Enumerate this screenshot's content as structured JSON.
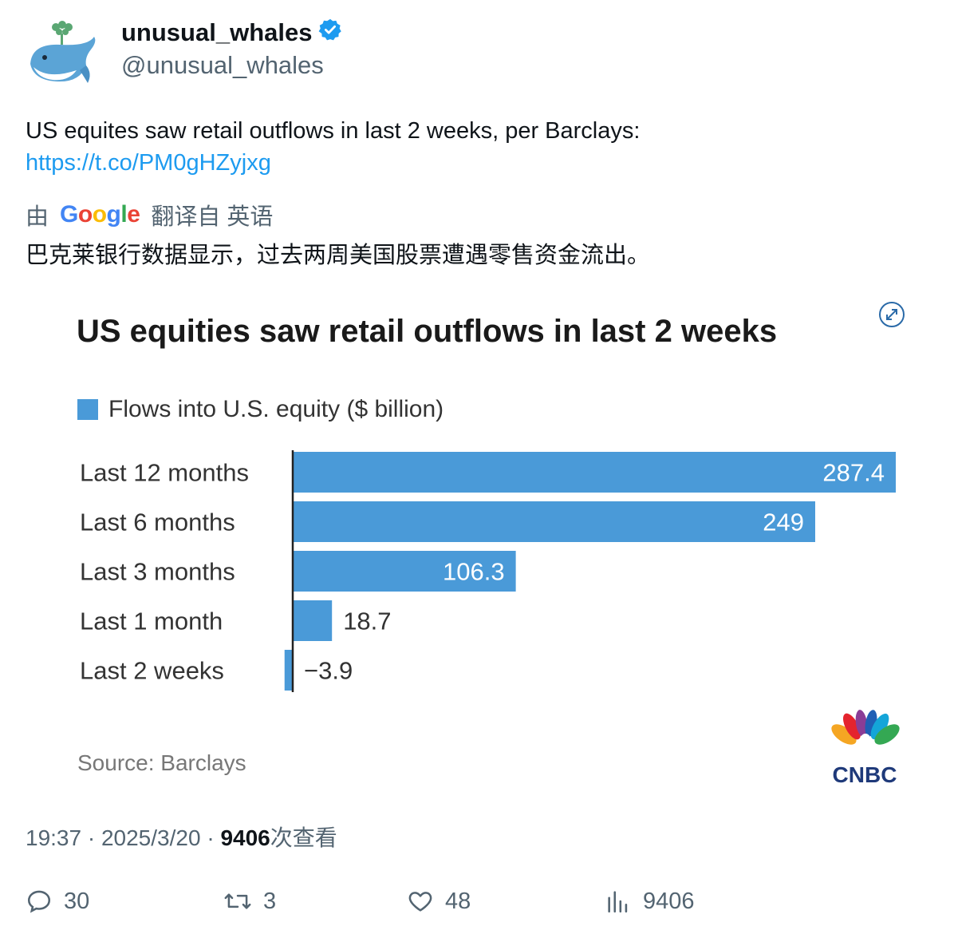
{
  "account": {
    "display_name": "unusual_whales",
    "handle": "@unusual_whales",
    "verified_color": "#1d9bf0"
  },
  "tweet": {
    "text": "US equites saw retail outflows in last 2 weeks, per Barclays:",
    "link": "https://t.co/PM0gHZyjxg",
    "translate_prefix": "由",
    "translate_brand": "Google",
    "translate_suffix": "翻译自 英语",
    "translated_text": "巴克莱银行数据显示，过去两周美国股票遭遇零售资金流出。"
  },
  "chart_data": {
    "type": "bar",
    "orientation": "horizontal",
    "title": "US equities saw retail outflows in last 2 weeks",
    "legend": "Flows into U.S. equity ($ billion)",
    "categories": [
      "Last 12 months",
      "Last 6 months",
      "Last 3 months",
      "Last 1 month",
      "Last 2 weeks"
    ],
    "values": [
      287.4,
      249,
      106.3,
      18.7,
      -3.9
    ],
    "value_labels": [
      "287.4",
      "249",
      "106.3",
      "18.7",
      "−3.9"
    ],
    "source": "Source: Barclays",
    "brand": "CNBC",
    "bar_color": "#4a9ad8",
    "legend_placement": "top-left",
    "grid": false
  },
  "meta": {
    "time": "19:37",
    "date": "2025/3/20",
    "views_count": "9406",
    "views_label": "次查看"
  },
  "actions": {
    "replies": "30",
    "retweets": "3",
    "likes": "48",
    "views": "9406"
  }
}
